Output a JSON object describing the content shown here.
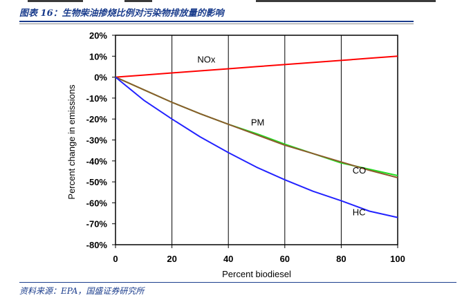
{
  "header": {
    "title": "图表 16：生物柴油掺烧比例对污染物排放量的影响"
  },
  "footer": {
    "source": "资料来源：EPA，国盛证券研究所"
  },
  "chart_data": {
    "type": "line",
    "xlabel": "Percent biodiesel",
    "ylabel": "Percent change in emissions",
    "xlim": [
      0,
      100
    ],
    "ylim": [
      -80,
      20
    ],
    "xticks": [
      0,
      20,
      40,
      60,
      80,
      100
    ],
    "yticks": [
      20,
      10,
      0,
      -10,
      -20,
      -30,
      -40,
      -50,
      -60,
      -70,
      -80
    ],
    "ytick_labels": [
      "20%",
      "10%",
      "0%",
      "-10%",
      "-20%",
      "-30%",
      "-40%",
      "-50%",
      "-60%",
      "-70%",
      "-80%"
    ],
    "grid": "vertical",
    "series": [
      {
        "name": "NOx",
        "color": "#ff0000",
        "x": [
          0,
          10,
          20,
          30,
          40,
          50,
          60,
          70,
          80,
          90,
          100
        ],
        "y": [
          0,
          1,
          2,
          3,
          4,
          5,
          6,
          7,
          8,
          9,
          10
        ]
      },
      {
        "name": "PM",
        "color": "#22dd22",
        "x": [
          0,
          10,
          20,
          30,
          40,
          50,
          60,
          70,
          80,
          90,
          100
        ],
        "y": [
          0,
          -6,
          -12,
          -17.5,
          -22.5,
          -27,
          -32,
          -36.5,
          -41,
          -44,
          -47
        ]
      },
      {
        "name": "CO",
        "color": "#8b5a2b",
        "x": [
          0,
          10,
          20,
          30,
          40,
          50,
          60,
          70,
          80,
          90,
          100
        ],
        "y": [
          0,
          -6,
          -12,
          -17.5,
          -22.5,
          -27.5,
          -32.5,
          -36.5,
          -40.5,
          -44.5,
          -48
        ]
      },
      {
        "name": "HC",
        "color": "#2222ff",
        "x": [
          0,
          10,
          20,
          30,
          40,
          50,
          60,
          70,
          80,
          90,
          100
        ],
        "y": [
          0,
          -11,
          -20,
          -28.5,
          -36,
          -43,
          -49,
          -54.5,
          -59,
          -64,
          -67
        ]
      }
    ],
    "annotations": [
      "NOx",
      "PM",
      "CO",
      "HC"
    ]
  }
}
